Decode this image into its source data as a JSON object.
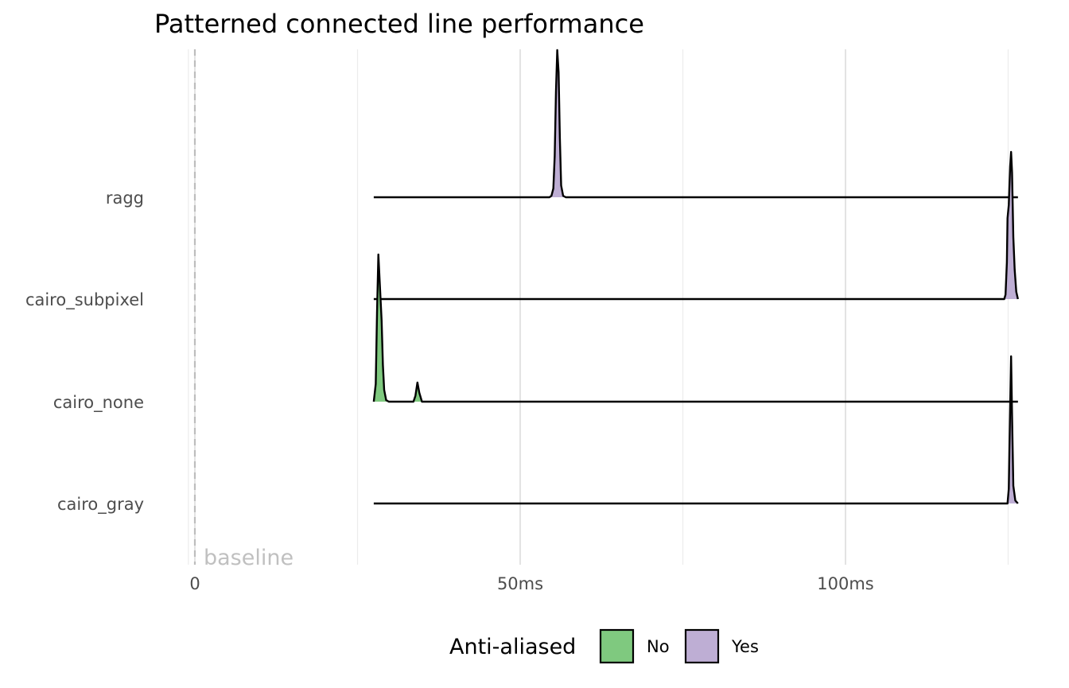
{
  "chart_data": {
    "type": "ridgeline",
    "title": "Patterned connected line performance",
    "xlabel": "",
    "ylabel": "",
    "x_unit": "ms",
    "xlim": [
      -2,
      128
    ],
    "x_ticks": [
      0,
      50,
      100
    ],
    "x_tick_labels": [
      "0",
      "50ms",
      "100ms"
    ],
    "x_minor_gridlines": [
      -1,
      25,
      75,
      125
    ],
    "grid": true,
    "reference_line": {
      "x": 0,
      "style": "dashed",
      "label": "baseline"
    },
    "categories": [
      "ragg",
      "cairo_subpixel",
      "cairo_none",
      "cairo_gray"
    ],
    "legend": {
      "title": "Anti-aliased",
      "position": "bottom",
      "entries": [
        {
          "label": "No",
          "color": "#7fc97f"
        },
        {
          "label": "Yes",
          "color": "#beaed4"
        }
      ]
    },
    "series": [
      {
        "category": "ragg",
        "anti_aliased": "Yes",
        "color": "#beaed4",
        "x_range": [
          27.5,
          126.5
        ],
        "density": [
          [
            27.5,
            0
          ],
          [
            54.5,
            0
          ],
          [
            54.8,
            0.01
          ],
          [
            55.1,
            0.06
          ],
          [
            55.3,
            0.28
          ],
          [
            55.5,
            0.72
          ],
          [
            55.7,
            1.0
          ],
          [
            55.9,
            0.85
          ],
          [
            56.1,
            0.4
          ],
          [
            56.3,
            0.08
          ],
          [
            56.6,
            0.01
          ],
          [
            57.0,
            0
          ],
          [
            126.5,
            0
          ]
        ]
      },
      {
        "category": "cairo_subpixel",
        "anti_aliased": "Yes",
        "color": "#beaed4",
        "x_range": [
          27.5,
          126.5
        ],
        "density": [
          [
            27.5,
            0
          ],
          [
            124.4,
            0
          ],
          [
            124.6,
            0.03
          ],
          [
            124.8,
            0.25
          ],
          [
            124.9,
            0.55
          ],
          [
            125.1,
            0.64
          ],
          [
            125.3,
            0.9
          ],
          [
            125.45,
            1.0
          ],
          [
            125.6,
            0.86
          ],
          [
            125.8,
            0.42
          ],
          [
            126.0,
            0.2
          ],
          [
            126.25,
            0.05
          ],
          [
            126.5,
            0
          ]
        ]
      },
      {
        "category": "cairo_none",
        "anti_aliased": "No",
        "color": "#7fc97f",
        "x_range": [
          27.5,
          126.5
        ],
        "density": [
          [
            27.5,
            0
          ],
          [
            27.8,
            0.12
          ],
          [
            28.0,
            0.6
          ],
          [
            28.2,
            1.0
          ],
          [
            28.45,
            0.78
          ],
          [
            28.7,
            0.55
          ],
          [
            28.9,
            0.25
          ],
          [
            29.1,
            0.08
          ],
          [
            29.4,
            0.01
          ],
          [
            29.8,
            0
          ],
          [
            33.6,
            0
          ],
          [
            33.9,
            0.04
          ],
          [
            34.2,
            0.13
          ],
          [
            34.5,
            0.06
          ],
          [
            34.9,
            0
          ],
          [
            126.5,
            0
          ]
        ]
      },
      {
        "category": "cairo_gray",
        "anti_aliased": "Yes",
        "color": "#beaed4",
        "x_range": [
          27.5,
          126.5
        ],
        "density": [
          [
            27.5,
            0
          ],
          [
            124.9,
            0
          ],
          [
            125.1,
            0.1
          ],
          [
            125.3,
            0.65
          ],
          [
            125.45,
            1.0
          ],
          [
            125.6,
            0.6
          ],
          [
            125.8,
            0.12
          ],
          [
            126.1,
            0.02
          ],
          [
            126.5,
            0
          ]
        ]
      }
    ]
  }
}
